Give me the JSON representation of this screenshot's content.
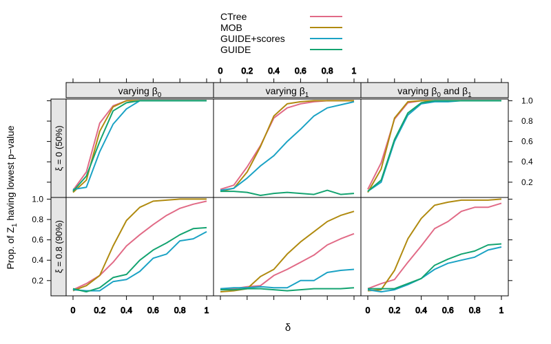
{
  "chart_data": {
    "type": "line",
    "layout": "trellis 3 columns x 2 rows",
    "xlabel": "δ",
    "ylabel": "Prop. of Z₁ having lowest p−value",
    "ylabel_parts": {
      "pre": "Prop. of Z",
      "sub": "1",
      "post": " having lowest p−value"
    },
    "xlim": [
      0,
      1
    ],
    "ylim": [
      0.05,
      1.03
    ],
    "x_ticks": [
      0,
      0.2,
      0.4,
      0.6,
      0.8,
      1
    ],
    "x_tick_labels": [
      "0",
      "0.2",
      "0.4",
      "0.6",
      "0.8",
      "1"
    ],
    "y_ticks": [
      0.2,
      0.4,
      0.6,
      0.8,
      1.0
    ],
    "y_tick_labels_upper": [
      "0.2",
      "0.4",
      "0.6",
      "0.8",
      "1.0"
    ],
    "y_tick_labels_lower": [
      "0.2",
      "0.4",
      "0.6",
      "0.8",
      "1.0"
    ],
    "legend": [
      {
        "name": "CTree",
        "color": "#E16A86"
      },
      {
        "name": "MOB",
        "color": "#B08A0F"
      },
      {
        "name": "GUIDE+scores",
        "color": "#1AA2C4"
      },
      {
        "name": "GUIDE",
        "color": "#13A370"
      }
    ],
    "columns": [
      {
        "label": "varying β₀",
        "parts": {
          "pre": "varying β",
          "sub": "0",
          "post": ""
        }
      },
      {
        "label": "varying β₁",
        "parts": {
          "pre": "varying β",
          "sub": "1",
          "post": ""
        }
      },
      {
        "label": "varying β₀ and β₁",
        "parts": {
          "pre": "varying β",
          "sub": "0",
          "mid": " and β",
          "sub2": "1"
        }
      }
    ],
    "rows": [
      {
        "label": "ξ = 0  (50%)",
        "xi": "ξ = 0",
        "pct": "(50%)"
      },
      {
        "label": "ξ = 0.8  (90%)",
        "xi": "ξ = 0.8",
        "pct": "(90%)"
      }
    ],
    "x": [
      0,
      0.1,
      0.2,
      0.3,
      0.4,
      0.5,
      0.6,
      0.7,
      0.8,
      0.9,
      1.0
    ],
    "panels": [
      {
        "row": 0,
        "col": 0,
        "series": [
          {
            "name": "CTree",
            "values": [
              0.12,
              0.3,
              0.78,
              0.95,
              1.0,
              1.0,
              1.0,
              1.0,
              1.0,
              1.0,
              1.0
            ]
          },
          {
            "name": "MOB",
            "values": [
              0.1,
              0.22,
              0.7,
              0.94,
              1.0,
              1.0,
              1.0,
              1.0,
              1.0,
              1.0,
              1.0
            ]
          },
          {
            "name": "GUIDE+scores",
            "values": [
              0.13,
              0.15,
              0.5,
              0.77,
              0.92,
              1.0,
              1.0,
              1.0,
              1.0,
              1.0,
              1.0
            ]
          },
          {
            "name": "GUIDE",
            "values": [
              0.11,
              0.26,
              0.6,
              0.9,
              0.98,
              1.0,
              1.0,
              1.0,
              1.0,
              1.0,
              1.0
            ]
          }
        ]
      },
      {
        "row": 0,
        "col": 1,
        "series": [
          {
            "name": "CTree",
            "values": [
              0.13,
              0.17,
              0.35,
              0.56,
              0.83,
              0.93,
              0.97,
              0.99,
              1.0,
              1.0,
              1.0
            ]
          },
          {
            "name": "MOB",
            "values": [
              0.11,
              0.14,
              0.3,
              0.55,
              0.85,
              0.97,
              0.99,
              1.0,
              1.0,
              1.0,
              1.0
            ]
          },
          {
            "name": "GUIDE+scores",
            "values": [
              0.12,
              0.14,
              0.24,
              0.36,
              0.46,
              0.6,
              0.72,
              0.85,
              0.93,
              0.96,
              0.99
            ]
          },
          {
            "name": "GUIDE",
            "values": [
              0.11,
              0.11,
              0.1,
              0.07,
              0.09,
              0.1,
              0.09,
              0.08,
              0.12,
              0.08,
              0.09
            ]
          }
        ]
      },
      {
        "row": 0,
        "col": 2,
        "series": [
          {
            "name": "CTree",
            "values": [
              0.13,
              0.39,
              0.82,
              0.98,
              1.0,
              1.0,
              1.0,
              1.0,
              1.0,
              1.0,
              1.0
            ]
          },
          {
            "name": "MOB",
            "values": [
              0.1,
              0.33,
              0.83,
              0.99,
              1.0,
              1.0,
              1.0,
              1.0,
              1.0,
              1.0,
              1.0
            ]
          },
          {
            "name": "GUIDE+scores",
            "values": [
              0.11,
              0.2,
              0.6,
              0.86,
              0.97,
              0.99,
              0.99,
              1.0,
              1.0,
              1.0,
              1.0
            ]
          },
          {
            "name": "GUIDE",
            "values": [
              0.11,
              0.22,
              0.62,
              0.88,
              0.98,
              1.0,
              1.0,
              1.0,
              1.0,
              1.0,
              1.0
            ]
          }
        ]
      },
      {
        "row": 1,
        "col": 0,
        "series": [
          {
            "name": "CTree",
            "values": [
              0.11,
              0.17,
              0.25,
              0.38,
              0.54,
              0.65,
              0.75,
              0.84,
              0.91,
              0.95,
              0.98
            ]
          },
          {
            "name": "MOB",
            "values": [
              0.1,
              0.15,
              0.25,
              0.54,
              0.79,
              0.92,
              0.98,
              0.99,
              1.0,
              1.0,
              1.0
            ]
          },
          {
            "name": "GUIDE+scores",
            "values": [
              0.11,
              0.1,
              0.1,
              0.19,
              0.21,
              0.29,
              0.42,
              0.46,
              0.59,
              0.61,
              0.68
            ]
          },
          {
            "name": "GUIDE",
            "values": [
              0.12,
              0.09,
              0.13,
              0.23,
              0.26,
              0.4,
              0.5,
              0.57,
              0.65,
              0.71,
              0.72
            ]
          }
        ]
      },
      {
        "row": 1,
        "col": 1,
        "series": [
          {
            "name": "CTree",
            "values": [
              0.11,
              0.12,
              0.14,
              0.15,
              0.25,
              0.31,
              0.38,
              0.45,
              0.55,
              0.61,
              0.66
            ]
          },
          {
            "name": "MOB",
            "values": [
              0.09,
              0.1,
              0.12,
              0.24,
              0.31,
              0.46,
              0.58,
              0.68,
              0.78,
              0.84,
              0.88
            ]
          },
          {
            "name": "GUIDE+scores",
            "values": [
              0.12,
              0.13,
              0.13,
              0.14,
              0.13,
              0.13,
              0.2,
              0.2,
              0.28,
              0.3,
              0.31
            ]
          },
          {
            "name": "GUIDE",
            "values": [
              0.11,
              0.11,
              0.12,
              0.12,
              0.11,
              0.1,
              0.11,
              0.12,
              0.12,
              0.12,
              0.13
            ]
          }
        ]
      },
      {
        "row": 1,
        "col": 2,
        "series": [
          {
            "name": "CTree",
            "values": [
              0.12,
              0.17,
              0.21,
              0.38,
              0.54,
              0.71,
              0.78,
              0.88,
              0.92,
              0.92,
              0.96
            ]
          },
          {
            "name": "MOB",
            "values": [
              0.1,
              0.11,
              0.3,
              0.61,
              0.81,
              0.94,
              0.97,
              0.99,
              0.99,
              0.99,
              1.0
            ]
          },
          {
            "name": "GUIDE+scores",
            "values": [
              0.11,
              0.09,
              0.11,
              0.16,
              0.22,
              0.31,
              0.37,
              0.4,
              0.43,
              0.5,
              0.53
            ]
          },
          {
            "name": "GUIDE",
            "values": [
              0.12,
              0.12,
              0.12,
              0.17,
              0.22,
              0.35,
              0.41,
              0.46,
              0.49,
              0.55,
              0.56
            ]
          }
        ]
      }
    ]
  }
}
